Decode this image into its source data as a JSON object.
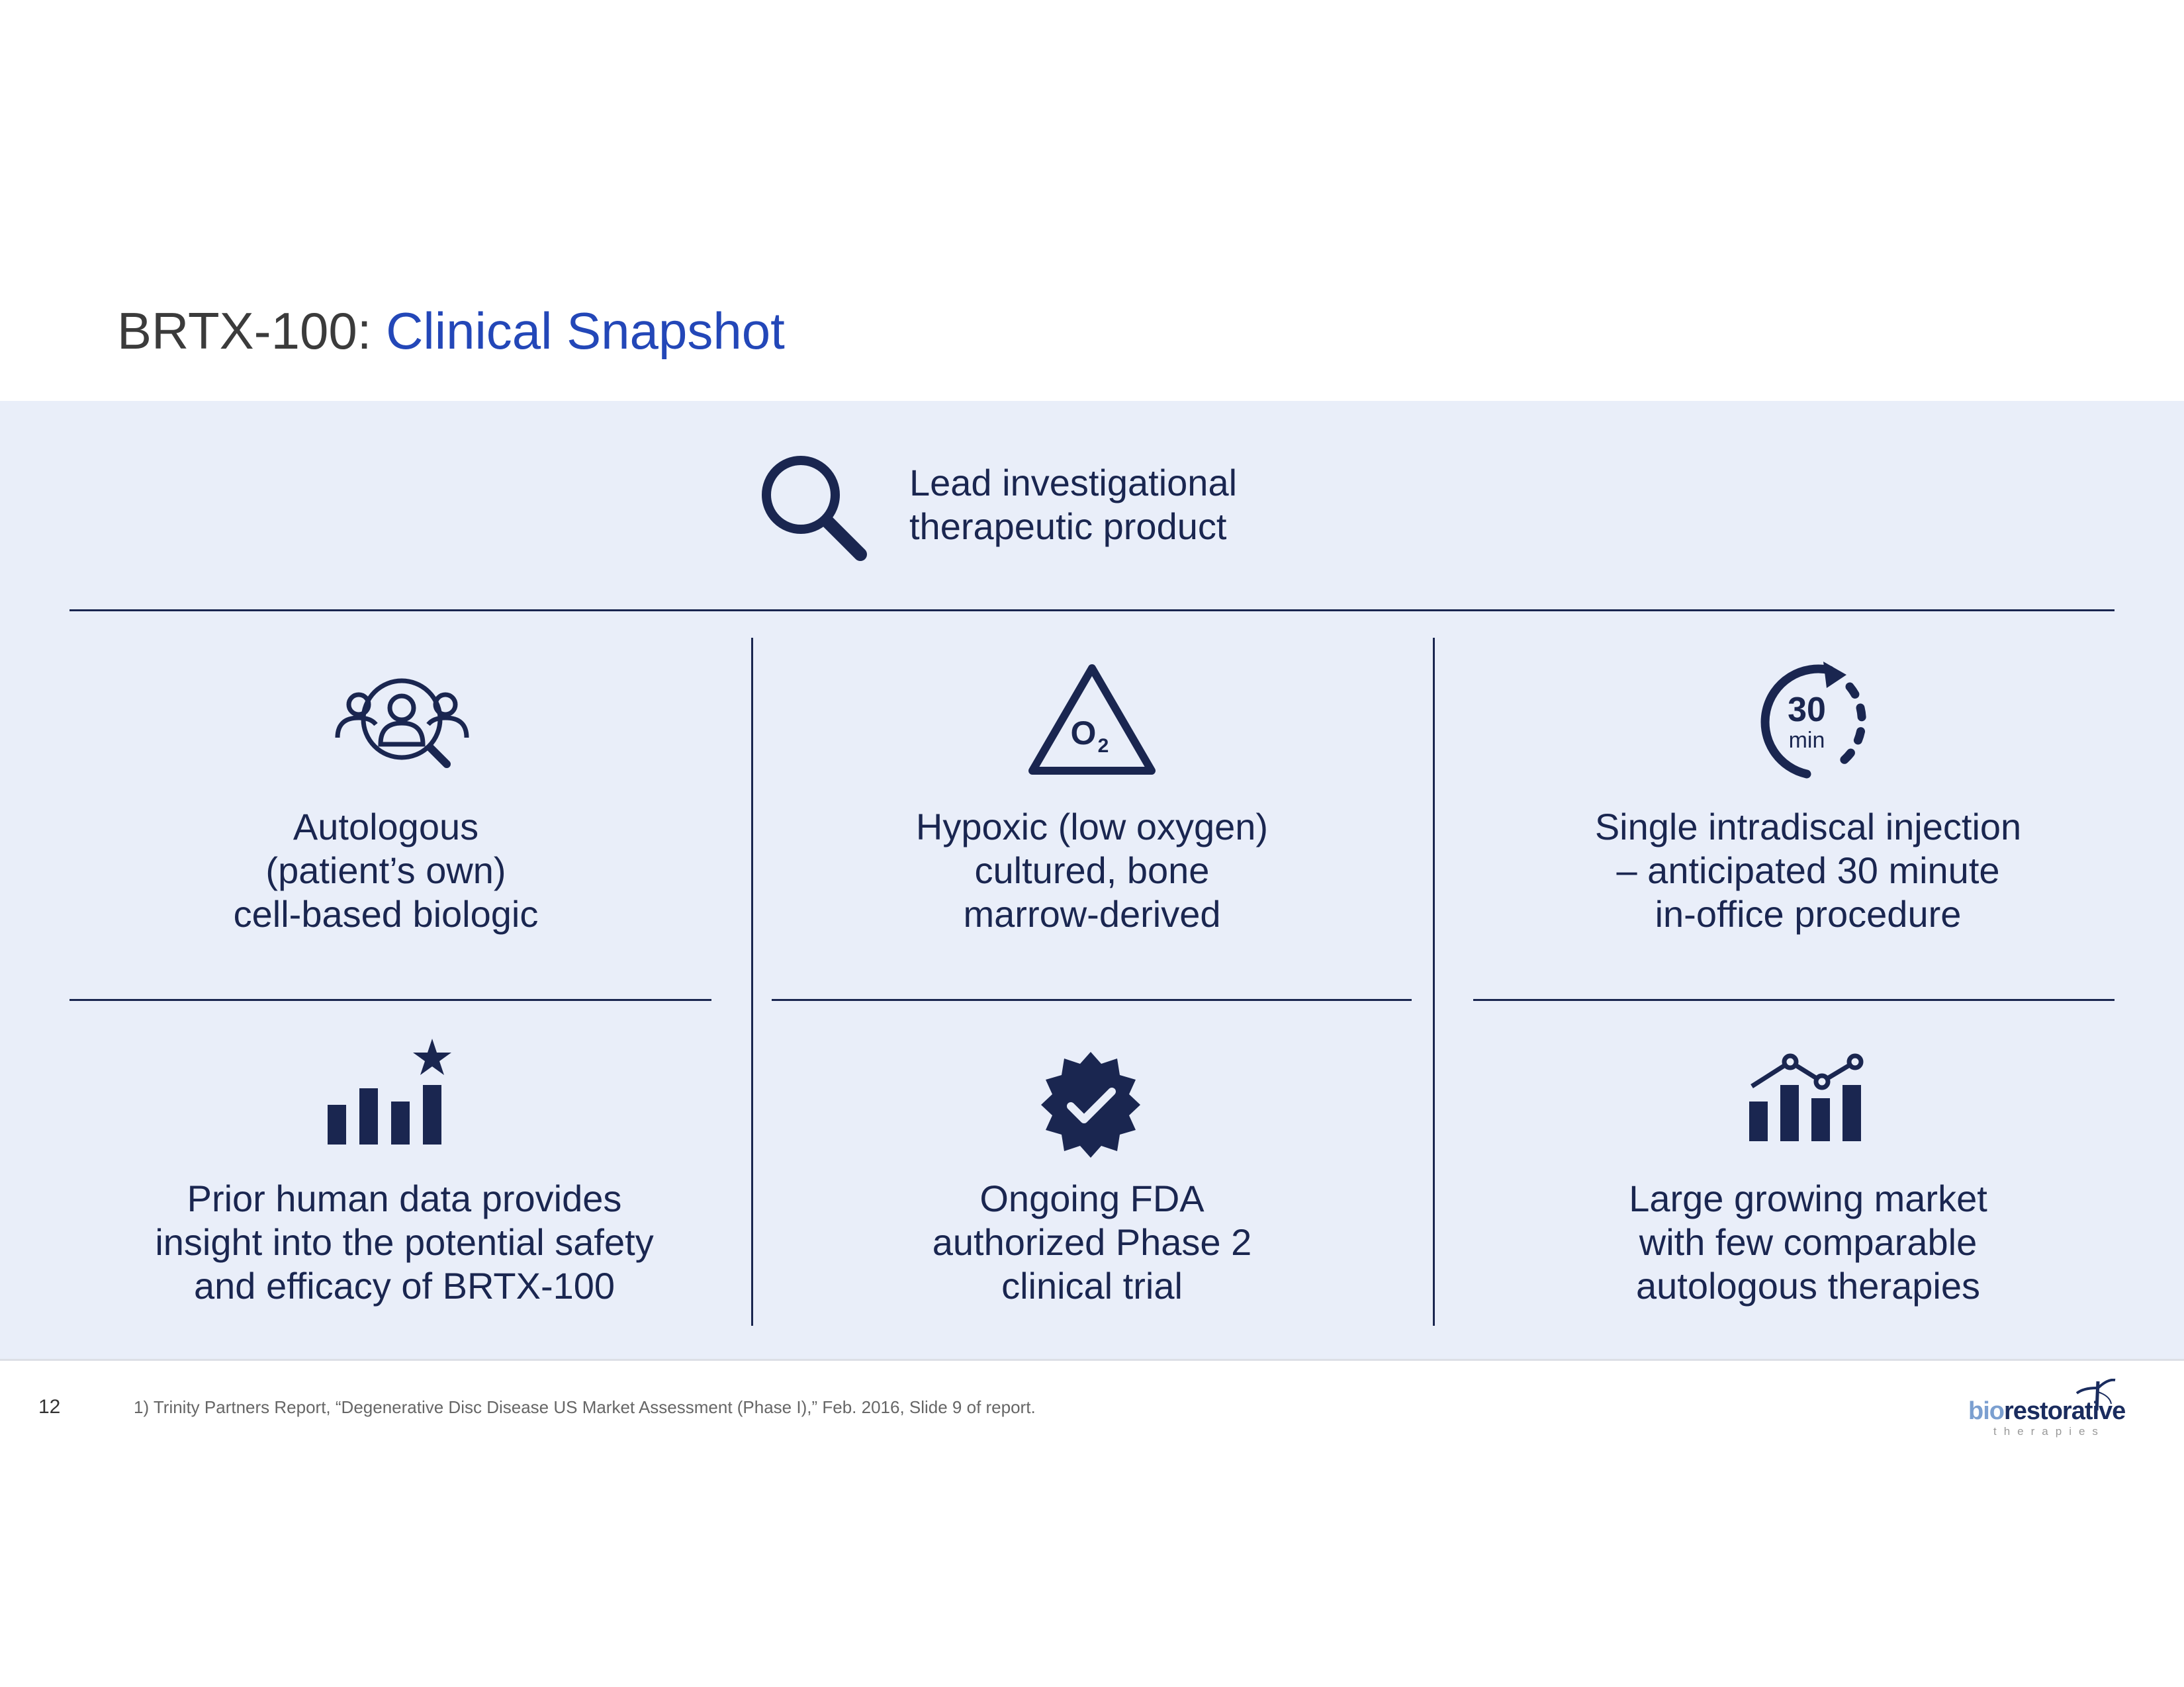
{
  "header": {
    "title_prefix": "BRTX-100: ",
    "title_accent": "Clinical Snapshot"
  },
  "colors": {
    "accent": "#2347b8",
    "navy": "#1a2650",
    "panel": "#e9eef9"
  },
  "lead": {
    "icon": "magnifier-icon",
    "lines": [
      "Lead investigational",
      "therapeutic product"
    ]
  },
  "cells": [
    {
      "icon": "people-search-icon",
      "lines": [
        "Autologous",
        "(patient’s own)",
        "cell-based biologic"
      ]
    },
    {
      "icon": "o2-triangle-icon",
      "icon_text": "O",
      "icon_sub": "2",
      "lines": [
        "Hypoxic (low oxygen)",
        "cultured, bone",
        "marrow-derived"
      ]
    },
    {
      "icon": "timer-30-min-icon",
      "icon_text": "30",
      "icon_sub": "min",
      "lines": [
        "Single intradiscal injection",
        "– anticipated 30 minute",
        "in-office procedure"
      ]
    },
    {
      "icon": "bar-chart-star-icon",
      "lines": [
        "Prior human data provides",
        "insight into the potential safety",
        "and efficacy of BRTX-100"
      ]
    },
    {
      "icon": "verified-badge-icon",
      "lines": [
        "Ongoing FDA",
        "authorized  Phase 2",
        "clinical trial"
      ]
    },
    {
      "icon": "market-growth-chart-icon",
      "lines": [
        "Large growing market",
        "with few comparable",
        "autologous therapies"
      ]
    }
  ],
  "footer": {
    "page_number": "12",
    "footnote": "1)  Trinity Partners Report, “Degenerative Disc Disease US Market Assessment (Phase I),” Feb. 2016, Slide 9 of report."
  },
  "logo": {
    "bio": "bio",
    "rest": "restorative",
    "sub": "therapies"
  }
}
